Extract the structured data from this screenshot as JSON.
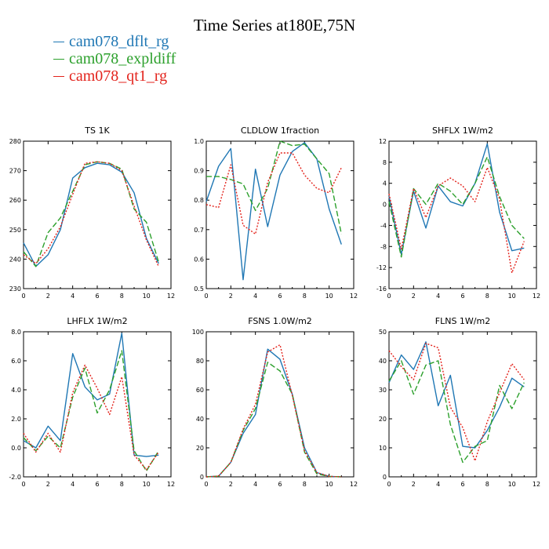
{
  "title": "Time Series at180E,75N",
  "legend": [
    {
      "label": "cam078_dflt_rg",
      "color": "#1f77b4"
    },
    {
      "label": "cam078_expldiff",
      "color": "#2ca02c"
    },
    {
      "label": "cam078_qt1_rg",
      "color": "#e3231c"
    }
  ],
  "chart_data": [
    {
      "type": "line",
      "title": "TS   1K",
      "xlim": [
        0,
        12
      ],
      "xticks": [
        0,
        2,
        4,
        6,
        8,
        10,
        12
      ],
      "ylim": [
        230,
        280
      ],
      "yticks": [
        230,
        240,
        250,
        260,
        270,
        280
      ],
      "ytick_labels": [
        "230",
        "240",
        "250",
        "260",
        "270",
        "280"
      ],
      "x": [
        0,
        1,
        2,
        3,
        4,
        5,
        6,
        7,
        8,
        9,
        10,
        11
      ],
      "series": [
        {
          "values": [
            245.5,
            237.5,
            241.5,
            250.0,
            267.5,
            271.0,
            272.5,
            272.0,
            269.5,
            262.5,
            247.0,
            238.5
          ]
        },
        {
          "values": [
            242.5,
            237.5,
            249.0,
            254.0,
            263.0,
            272.0,
            273.0,
            272.5,
            270.5,
            257.0,
            252.5,
            239.0
          ]
        },
        {
          "values": [
            241.5,
            238.5,
            243.5,
            251.0,
            262.0,
            272.5,
            273.0,
            272.5,
            270.0,
            258.0,
            246.5,
            237.5
          ]
        }
      ]
    },
    {
      "type": "line",
      "title": "CLDLOW   1fraction",
      "xlim": [
        0,
        12
      ],
      "xticks": [
        0,
        2,
        4,
        6,
        8,
        10,
        12
      ],
      "ylim": [
        0.5,
        1.0
      ],
      "yticks": [
        0.5,
        0.6,
        0.7,
        0.8,
        0.9,
        1.0
      ],
      "ytick_labels": [
        "0.5",
        "0.6",
        "0.7",
        "0.8",
        "0.9",
        "1.0"
      ],
      "x": [
        0,
        1,
        2,
        3,
        4,
        5,
        6,
        7,
        8,
        9,
        10,
        11
      ],
      "series": [
        {
          "values": [
            0.795,
            0.915,
            0.975,
            0.53,
            0.905,
            0.71,
            0.885,
            0.965,
            0.995,
            0.94,
            0.77,
            0.65
          ]
        },
        {
          "values": [
            0.88,
            0.88,
            0.87,
            0.855,
            0.765,
            0.84,
            1.0,
            0.985,
            0.99,
            0.94,
            0.89,
            0.685
          ]
        },
        {
          "values": [
            0.785,
            0.775,
            0.92,
            0.715,
            0.685,
            0.86,
            0.96,
            0.96,
            0.885,
            0.84,
            0.825,
            0.91
          ]
        }
      ]
    },
    {
      "type": "line",
      "title": "SHFLX   1W/m2",
      "xlim": [
        0,
        12
      ],
      "xticks": [
        0,
        2,
        4,
        6,
        8,
        10,
        12
      ],
      "ylim": [
        -16,
        12
      ],
      "yticks": [
        -16,
        -12,
        -8,
        -4,
        0,
        4,
        8,
        12
      ],
      "ytick_labels": [
        "-16",
        "-12",
        "-8",
        "-4",
        "0",
        "4",
        "8",
        "12"
      ],
      "x": [
        0,
        1,
        2,
        3,
        4,
        5,
        6,
        7,
        8,
        9,
        10,
        11
      ],
      "series": [
        {
          "values": [
            1.5,
            -9.5,
            2.5,
            -4.5,
            3.5,
            0.5,
            -0.3,
            4.0,
            11.5,
            -1.5,
            -8.8,
            -8.3
          ]
        },
        {
          "values": [
            0.5,
            -10.0,
            3.0,
            0.0,
            4.0,
            2.5,
            0.0,
            4.0,
            9.0,
            1.5,
            -4.0,
            -6.5
          ]
        },
        {
          "values": [
            2.0,
            -8.5,
            3.0,
            -2.5,
            3.5,
            5.0,
            3.5,
            0.5,
            7.0,
            1.0,
            -13.0,
            -7.0
          ]
        }
      ]
    },
    {
      "type": "line",
      "title": "LHFLX   1W/m2",
      "xlim": [
        0,
        12
      ],
      "xticks": [
        0,
        2,
        4,
        6,
        8,
        10,
        12
      ],
      "ylim": [
        -2,
        8
      ],
      "yticks": [
        -2,
        0,
        2,
        4,
        6,
        8
      ],
      "ytick_labels": [
        "-2.0",
        "0.0",
        "2.0",
        "4.0",
        "6.0",
        "8.0"
      ],
      "x": [
        0,
        1,
        2,
        3,
        4,
        5,
        6,
        7,
        8,
        9,
        10,
        11
      ],
      "series": [
        {
          "values": [
            0.5,
            0.0,
            1.5,
            0.5,
            6.5,
            4.2,
            3.3,
            3.7,
            7.9,
            -0.5,
            -0.6,
            -0.5
          ]
        },
        {
          "values": [
            0.7,
            -0.2,
            0.8,
            0.0,
            3.5,
            5.5,
            2.4,
            4.0,
            6.7,
            -0.2,
            -1.6,
            -0.2
          ]
        },
        {
          "values": [
            1.0,
            -0.3,
            1.0,
            -0.3,
            3.8,
            5.7,
            4.1,
            2.3,
            4.9,
            -0.5,
            -1.5,
            -0.3
          ]
        }
      ]
    },
    {
      "type": "line",
      "title": "FSNS   1.0W/m2",
      "xlim": [
        0,
        12
      ],
      "xticks": [
        0,
        2,
        4,
        6,
        8,
        10,
        12
      ],
      "ylim": [
        0,
        100
      ],
      "yticks": [
        0,
        20,
        40,
        60,
        80,
        100
      ],
      "ytick_labels": [
        "0",
        "20",
        "40",
        "60",
        "80",
        "100"
      ],
      "x": [
        0,
        1,
        2,
        3,
        4,
        5,
        6,
        7,
        8,
        9,
        10,
        11
      ],
      "series": [
        {
          "values": [
            0,
            0.5,
            10,
            30,
            43,
            88,
            81,
            57,
            20,
            3,
            0.3,
            0
          ]
        },
        {
          "values": [
            0,
            0.5,
            10,
            32,
            47,
            79,
            73,
            57,
            17,
            2,
            0.3,
            0
          ]
        },
        {
          "values": [
            0,
            0.5,
            10,
            33,
            50,
            86,
            91,
            56,
            18,
            3,
            0.3,
            0
          ]
        }
      ]
    },
    {
      "type": "line",
      "title": "FLNS   1W/m2",
      "xlim": [
        0,
        12
      ],
      "xticks": [
        0,
        2,
        4,
        6,
        8,
        10,
        12
      ],
      "ylim": [
        0,
        50
      ],
      "yticks": [
        0,
        10,
        20,
        30,
        40,
        50
      ],
      "ytick_labels": [
        "0",
        "10",
        "20",
        "30",
        "40",
        "50"
      ],
      "x": [
        0,
        1,
        2,
        3,
        4,
        5,
        6,
        7,
        8,
        9,
        10,
        11
      ],
      "series": [
        {
          "values": [
            32.5,
            42.0,
            37.0,
            46.5,
            24.5,
            35.0,
            10.5,
            10.0,
            16.0,
            24.0,
            34.0,
            31.0
          ]
        },
        {
          "values": [
            33.0,
            40.0,
            28.5,
            38.5,
            40.0,
            18.0,
            5.0,
            10.5,
            12.5,
            31.5,
            23.5,
            32.5
          ]
        },
        {
          "values": [
            43.5,
            38.0,
            33.5,
            46.0,
            44.5,
            24.0,
            17.0,
            5.5,
            19.0,
            29.0,
            39.0,
            33.5
          ]
        }
      ]
    }
  ]
}
